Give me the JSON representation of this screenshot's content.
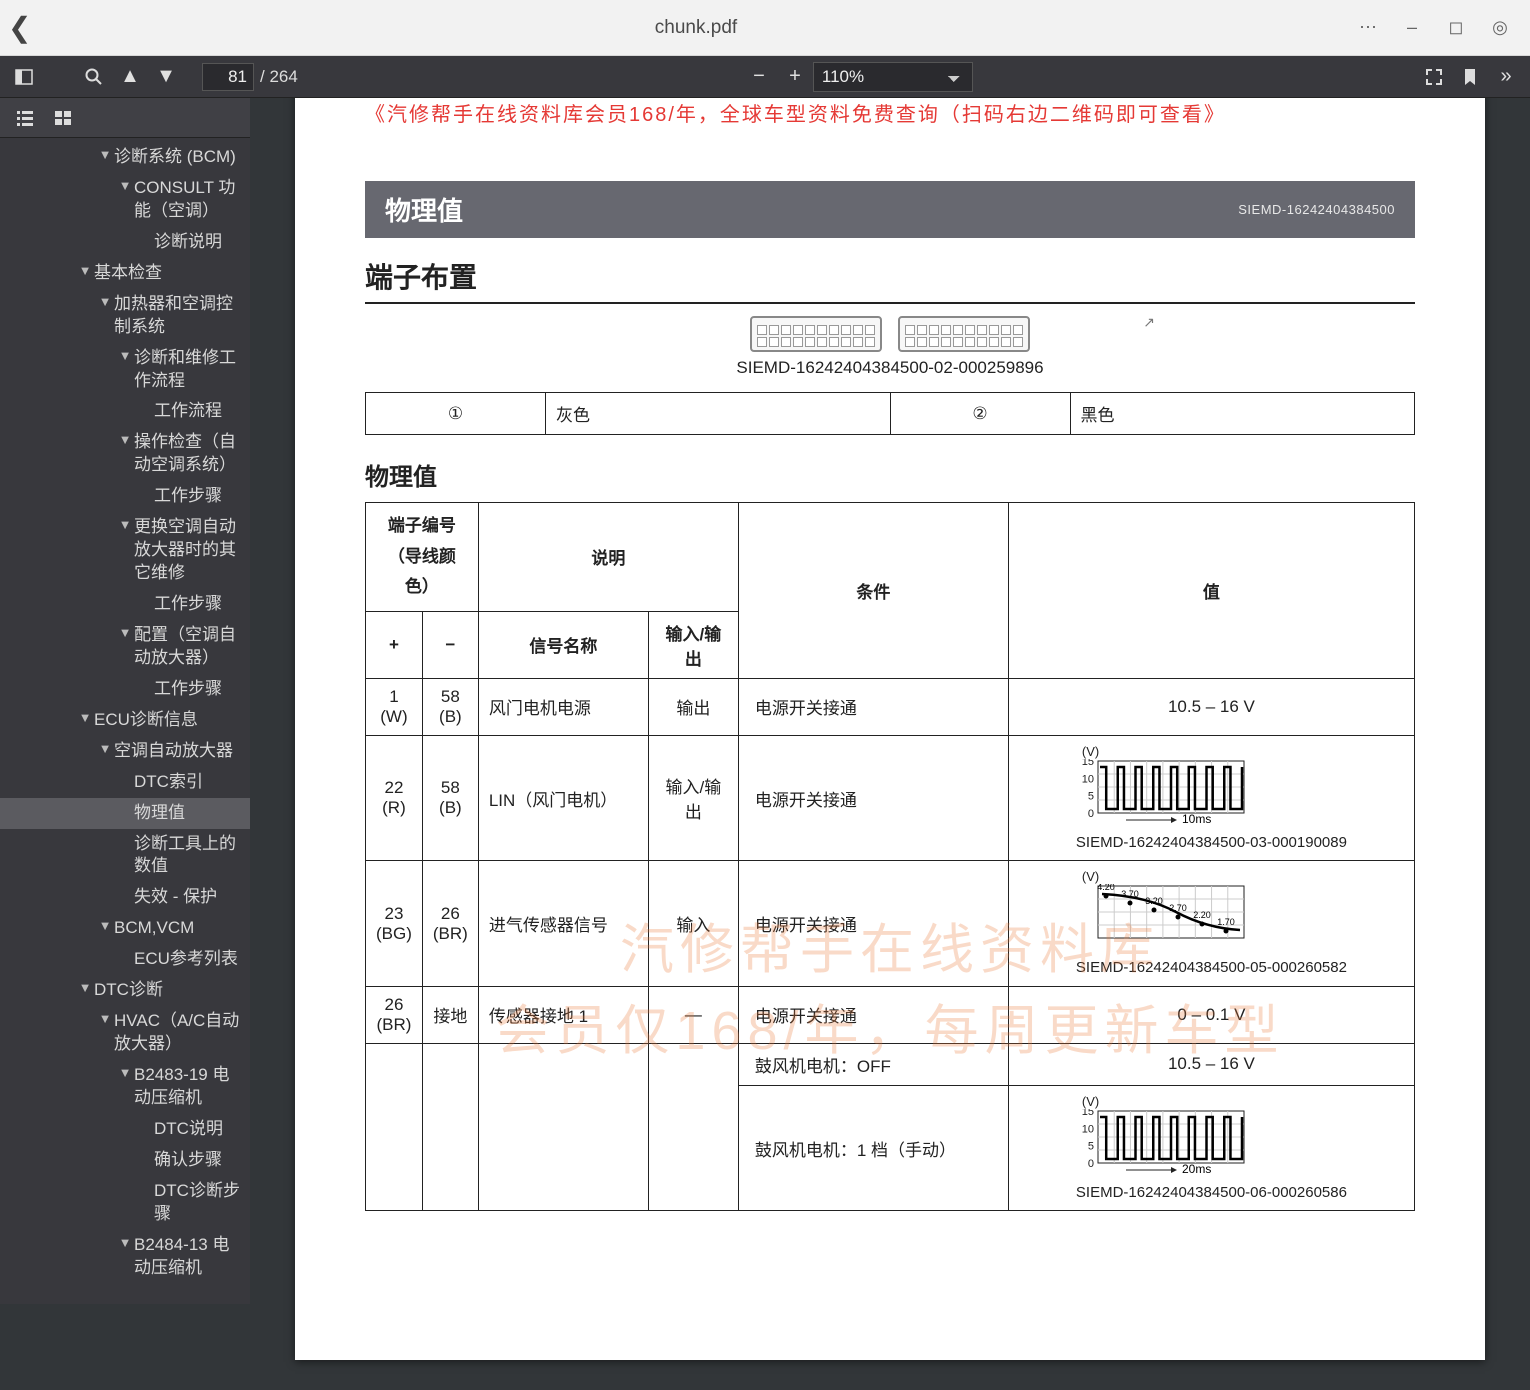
{
  "titlebar": {
    "title": "chunk.pdf"
  },
  "toolbar": {
    "page_current": "81",
    "page_total": "/ 264",
    "zoom": "110%"
  },
  "sidebar": {
    "items": [
      {
        "lvl": 2,
        "arrow": "▼",
        "label": "诊断系统 (BCM)"
      },
      {
        "lvl": 3,
        "arrow": "▼",
        "label": "CONSULT 功能（空调）"
      },
      {
        "lvl": 4,
        "arrow": "",
        "label": "诊断说明"
      },
      {
        "lvl": 1,
        "arrow": "▼",
        "label": "基本检查"
      },
      {
        "lvl": 2,
        "arrow": "▼",
        "label": "加热器和空调控制系统"
      },
      {
        "lvl": 3,
        "arrow": "▼",
        "label": "诊断和维修工作流程"
      },
      {
        "lvl": 4,
        "arrow": "",
        "label": "工作流程"
      },
      {
        "lvl": 3,
        "arrow": "▼",
        "label": "操作检查（自动空调系统）"
      },
      {
        "lvl": 4,
        "arrow": "",
        "label": "工作步骤"
      },
      {
        "lvl": 3,
        "arrow": "▼",
        "label": "更换空调自动放大器时的其它维修"
      },
      {
        "lvl": 4,
        "arrow": "",
        "label": "工作步骤"
      },
      {
        "lvl": 3,
        "arrow": "▼",
        "label": "配置（空调自动放大器）"
      },
      {
        "lvl": 4,
        "arrow": "",
        "label": "工作步骤"
      },
      {
        "lvl": 1,
        "arrow": "▼",
        "label": "ECU诊断信息"
      },
      {
        "lvl": 2,
        "arrow": "▼",
        "label": "空调自动放大器"
      },
      {
        "lvl": 3,
        "arrow": "",
        "label": "DTC索引"
      },
      {
        "lvl": 3,
        "arrow": "",
        "label": "物理值",
        "selected": true
      },
      {
        "lvl": 3,
        "arrow": "",
        "label": "诊断工具上的数值"
      },
      {
        "lvl": 3,
        "arrow": "",
        "label": "失效 - 保护"
      },
      {
        "lvl": 2,
        "arrow": "▼",
        "label": "BCM,VCM"
      },
      {
        "lvl": 3,
        "arrow": "",
        "label": "ECU参考列表"
      },
      {
        "lvl": 1,
        "arrow": "▼",
        "label": "DTC诊断"
      },
      {
        "lvl": 2,
        "arrow": "▼",
        "label": "HVAC（A/C自动放大器）"
      },
      {
        "lvl": 3,
        "arrow": "▼",
        "label": "B2483-19 电动压缩机"
      },
      {
        "lvl": 4,
        "arrow": "",
        "label": "DTC说明"
      },
      {
        "lvl": 4,
        "arrow": "",
        "label": "确认步骤"
      },
      {
        "lvl": 4,
        "arrow": "",
        "label": "DTC诊断步骤"
      },
      {
        "lvl": 3,
        "arrow": "▼",
        "label": "B2484-13 电动压缩机"
      }
    ]
  },
  "doc": {
    "redband": "《汽修帮手在线资料库会员168/年，全球车型资料免费查询（扫码右边二维码即可查看》",
    "section_bar": {
      "title": "物理值",
      "sid": "SIEMD-16242404384500"
    },
    "h2": "端子布置",
    "conn_caption": "SIEMD-16242404384500-02-000259896",
    "conn_table": {
      "cells": [
        "①",
        "灰色",
        "②",
        "黑色"
      ]
    },
    "h3": "物理值",
    "watermark_lines": [
      "汽修帮手在线资料库",
      "会员仅168/年，每周更新车型"
    ],
    "table": {
      "head": {
        "term_no": "端子编号",
        "wire_color": "（导线颜色）",
        "desc": "说明",
        "cond": "条件",
        "val": "值",
        "plus": "+",
        "minus": "−",
        "sig_name": "信号名称",
        "io": "输入/输出"
      },
      "rows": [
        {
          "plus": [
            "1",
            "(W)"
          ],
          "minus": [
            "58",
            "(B)"
          ],
          "sig": "风门电机电源",
          "io": "输出",
          "cond": "电源开关接通",
          "val_text": "10.5 – 16 V"
        },
        {
          "plus": [
            "22",
            "(R)"
          ],
          "minus": [
            "58",
            "(B)"
          ],
          "sig": "LIN（风门电机）",
          "io": "输入/输出",
          "cond": "电源开关接通",
          "wave": {
            "ylabel": "(V)",
            "yticks": [
              "15",
              "10",
              "5",
              "0"
            ],
            "timebase": "10ms",
            "imgid": "SIEMD-16242404384500-03-000190089",
            "type": "square"
          }
        },
        {
          "plus": [
            "23",
            "(BG)"
          ],
          "minus": [
            "26",
            "(BR)"
          ],
          "sig": "进气传感器信号",
          "io": "输入",
          "cond": "电源开关接通",
          "wave": {
            "ylabel": "(V)",
            "imgid": "SIEMD-16242404384500-05-000260582",
            "type": "curve"
          }
        },
        {
          "plus": [
            "26",
            "(BR)"
          ],
          "minus_text": "接地",
          "sig": "传感器接地 1",
          "io": "—",
          "cond": "电源开关接通",
          "val_text": "0 – 0.1 V"
        },
        {
          "plus": [],
          "minus": [],
          "sig": "",
          "io": "",
          "subrows": [
            {
              "cond": "鼓风机电机：OFF",
              "val_text": "10.5 – 16 V"
            },
            {
              "cond": "鼓风机电机：1 档（手动）",
              "wave": {
                "ylabel": "(V)",
                "yticks": [
                  "15",
                  "10",
                  "5",
                  "0"
                ],
                "timebase": "20ms",
                "imgid": "SIEMD-16242404384500-06-000260586",
                "type": "square2"
              }
            }
          ]
        }
      ]
    }
  },
  "colors": {
    "toolbar_bg": "#38383d",
    "page_bg": "#ffffff",
    "accent_red": "#e53935",
    "section_bg": "#676870",
    "watermark": "rgba(233,121,58,.28)"
  }
}
